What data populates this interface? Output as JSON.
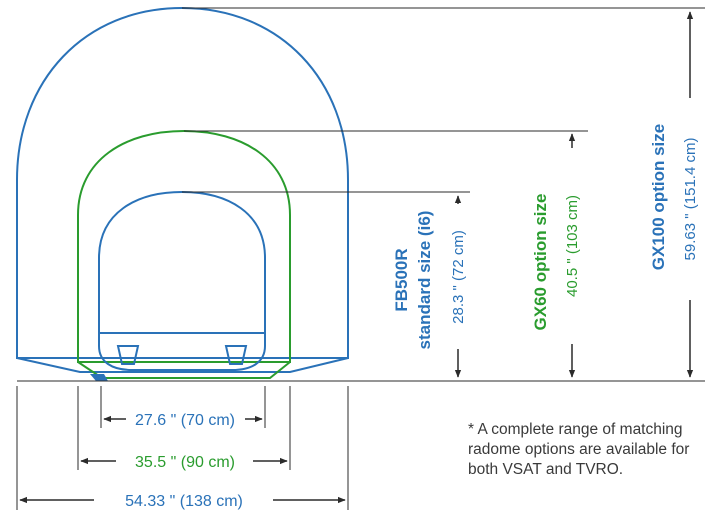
{
  "colors": {
    "blue": "#2a72b8",
    "green": "#2a9c2e",
    "dark": "#2b2b2b"
  },
  "radomes": {
    "fb500r": {
      "name_line1": "FB500R",
      "name_line2": "standard size (i6)",
      "height": "28.3 \" (72 cm)",
      "width": "27.6 \" (70 cm)"
    },
    "gx60": {
      "name": "GX60 option size",
      "height": "40.5 \" (103 cm)",
      "width": "35.5 \" (90 cm)"
    },
    "gx100": {
      "name": "GX100 option size",
      "height": "59.63 \" (151.4 cm)",
      "width": "54.33 \" (138 cm)"
    }
  },
  "footnote": "* A complete range of matching radome options are available for both VSAT and TVRO."
}
